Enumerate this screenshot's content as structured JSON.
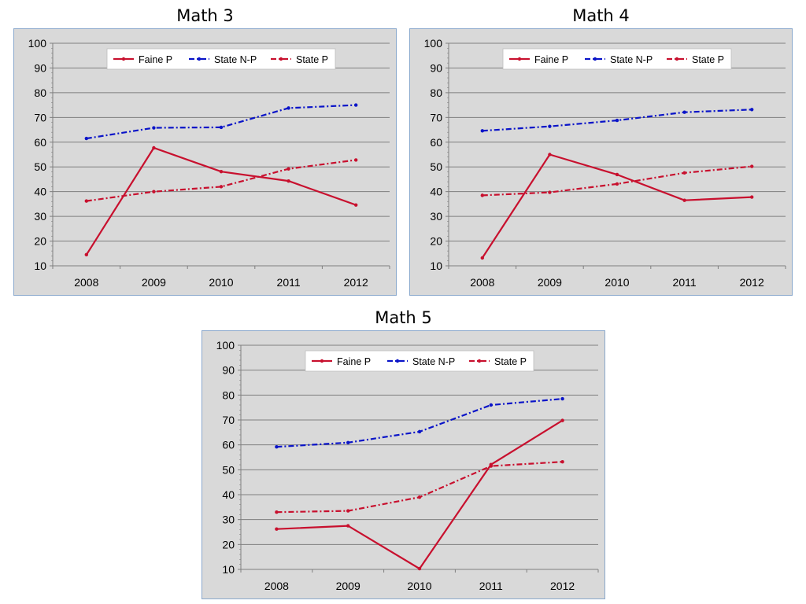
{
  "chart_data": [
    {
      "type": "line",
      "title": "Math 3",
      "categories": [
        "2008",
        "2009",
        "2010",
        "2011",
        "2012"
      ],
      "ylim": [
        10,
        100
      ],
      "yticks": [
        10,
        20,
        30,
        40,
        50,
        60,
        70,
        80,
        90,
        100
      ],
      "grid": true,
      "legend_position": "top-center",
      "series": [
        {
          "name": "Faine P",
          "values": [
            14.5,
            57.7,
            48.1,
            44.3,
            34.6
          ],
          "color": "#c8102e",
          "dash": "solid"
        },
        {
          "name": "State N-P",
          "values": [
            61.5,
            65.8,
            66.0,
            73.8,
            75.0
          ],
          "color": "#0a14c8",
          "dash": "dashdot"
        },
        {
          "name": "State P",
          "values": [
            36.2,
            40.0,
            42.0,
            49.2,
            52.8
          ],
          "color": "#c8102e",
          "dash": "dashdot"
        }
      ]
    },
    {
      "type": "line",
      "title": "Math 4",
      "categories": [
        "2008",
        "2009",
        "2010",
        "2011",
        "2012"
      ],
      "ylim": [
        10,
        100
      ],
      "yticks": [
        10,
        20,
        30,
        40,
        50,
        60,
        70,
        80,
        90,
        100
      ],
      "grid": true,
      "legend_position": "top-center",
      "series": [
        {
          "name": "Faine P",
          "values": [
            13.2,
            55.0,
            46.9,
            36.5,
            37.8
          ],
          "color": "#c8102e",
          "dash": "solid"
        },
        {
          "name": "State N-P",
          "values": [
            64.6,
            66.4,
            68.8,
            72.1,
            73.2
          ],
          "color": "#0a14c8",
          "dash": "dashdot"
        },
        {
          "name": "State P",
          "values": [
            38.5,
            39.7,
            43.1,
            47.6,
            50.2
          ],
          "color": "#c8102e",
          "dash": "dashdot"
        }
      ]
    },
    {
      "type": "line",
      "title": "Math 5",
      "categories": [
        "2008",
        "2009",
        "2010",
        "2011",
        "2012"
      ],
      "ylim": [
        10,
        100
      ],
      "yticks": [
        10,
        20,
        30,
        40,
        50,
        60,
        70,
        80,
        90,
        100
      ],
      "grid": true,
      "legend_position": "top-center",
      "series": [
        {
          "name": "Faine P",
          "values": [
            26.2,
            27.5,
            10.3,
            52.1,
            69.8
          ],
          "color": "#c8102e",
          "dash": "solid"
        },
        {
          "name": "State N-P",
          "values": [
            59.2,
            60.9,
            65.3,
            76.0,
            78.5
          ],
          "color": "#0a14c8",
          "dash": "dashdot"
        },
        {
          "name": "State P",
          "values": [
            33.0,
            33.5,
            39.0,
            51.5,
            53.2
          ],
          "color": "#c8102e",
          "dash": "dashdot"
        }
      ]
    }
  ]
}
